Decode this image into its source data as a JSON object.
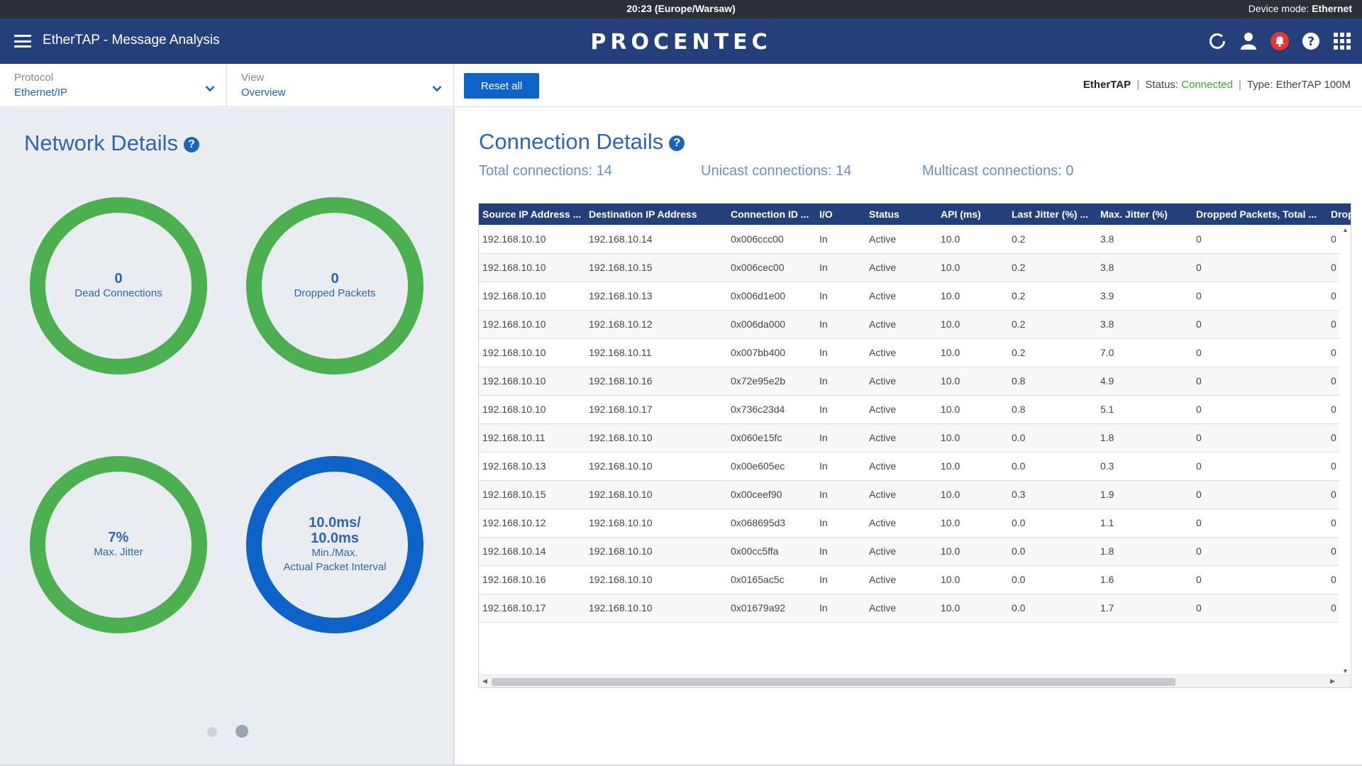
{
  "statusbar": {
    "time": "20:23 (Europe/Warsaw)",
    "device_mode_label": "Device mode:",
    "device_mode_value": "Ethernet"
  },
  "header": {
    "title": "EtherTAP - Message Analysis",
    "logo": "PROCENTEC",
    "icons": [
      "refresh-icon",
      "user-icon",
      "bell-icon",
      "help-icon",
      "apps-grid-icon"
    ]
  },
  "filters": {
    "protocol_label": "Protocol",
    "protocol_value": "Ethernet/IP",
    "view_label": "View",
    "view_value": "Overview",
    "reset_label": "Reset all"
  },
  "device": {
    "name": "EtherTAP",
    "sep": "|",
    "status_label": "Status:",
    "status_value": "Connected",
    "type_text": "Type: EtherTAP 100M",
    "status_color": "#3aa536"
  },
  "network": {
    "title": "Network Details",
    "gauges": [
      {
        "value": "0",
        "label": "Dead Connections",
        "color": "#4caf50"
      },
      {
        "value": "0",
        "label": "Dropped Packets",
        "color": "#4caf50"
      },
      {
        "value": "7%",
        "label": "Max. Jitter",
        "color": "#4caf50"
      },
      {
        "value_line1": "10.0ms/",
        "value_line2": "10.0ms",
        "label_line1": "Min./Max.",
        "label_line2": "Actual Packet Interval",
        "color": "#0d63c7"
      }
    ],
    "pager_active_index": 1
  },
  "connection": {
    "title": "Connection Details",
    "total": "Total connections: 14",
    "unicast": "Unicast connections: 14",
    "multicast": "Multicast connections: 0"
  },
  "table": {
    "columns": [
      "Source IP Address ...",
      "Destination IP Address",
      "Connection ID ...",
      "I/O",
      "Status",
      "API (ms)",
      "Last Jitter (%) ...",
      "Max. Jitter (%)",
      "Dropped Packets, Total ...",
      "Drop"
    ],
    "rows": [
      [
        "192.168.10.10",
        "192.168.10.14",
        "0x006ccc00",
        "In",
        "Active",
        "10.0",
        "0.2",
        "3.8",
        "0",
        "0"
      ],
      [
        "192.168.10.10",
        "192.168.10.15",
        "0x006cec00",
        "In",
        "Active",
        "10.0",
        "0.2",
        "3.8",
        "0",
        "0"
      ],
      [
        "192.168.10.10",
        "192.168.10.13",
        "0x006d1e00",
        "In",
        "Active",
        "10.0",
        "0.2",
        "3.9",
        "0",
        "0"
      ],
      [
        "192.168.10.10",
        "192.168.10.12",
        "0x006da000",
        "In",
        "Active",
        "10.0",
        "0.2",
        "3.8",
        "0",
        "0"
      ],
      [
        "192.168.10.10",
        "192.168.10.11",
        "0x007bb400",
        "In",
        "Active",
        "10.0",
        "0.2",
        "7.0",
        "0",
        "0"
      ],
      [
        "192.168.10.10",
        "192.168.10.16",
        "0x72e95e2b",
        "In",
        "Active",
        "10.0",
        "0.8",
        "4.9",
        "0",
        "0"
      ],
      [
        "192.168.10.10",
        "192.168.10.17",
        "0x736c23d4",
        "In",
        "Active",
        "10.0",
        "0.8",
        "5.1",
        "0",
        "0"
      ],
      [
        "192.168.10.11",
        "192.168.10.10",
        "0x060e15fc",
        "In",
        "Active",
        "10.0",
        "0.0",
        "1.8",
        "0",
        "0"
      ],
      [
        "192.168.10.13",
        "192.168.10.10",
        "0x00e605ec",
        "In",
        "Active",
        "10.0",
        "0.0",
        "0.3",
        "0",
        "0"
      ],
      [
        "192.168.10.15",
        "192.168.10.10",
        "0x00ceef90",
        "In",
        "Active",
        "10.0",
        "0.3",
        "1.9",
        "0",
        "0"
      ],
      [
        "192.168.10.12",
        "192.168.10.10",
        "0x068695d3",
        "In",
        "Active",
        "10.0",
        "0.0",
        "1.1",
        "0",
        "0"
      ],
      [
        "192.168.10.14",
        "192.168.10.10",
        "0x00cc5ffa",
        "In",
        "Active",
        "10.0",
        "0.0",
        "1.8",
        "0",
        "0"
      ],
      [
        "192.168.10.16",
        "192.168.10.10",
        "0x0165ac5c",
        "In",
        "Active",
        "10.0",
        "0.0",
        "1.6",
        "0",
        "0"
      ],
      [
        "192.168.10.17",
        "192.168.10.10",
        "0x01679a92",
        "In",
        "Active",
        "10.0",
        "0.0",
        "1.7",
        "0",
        "0"
      ]
    ]
  }
}
